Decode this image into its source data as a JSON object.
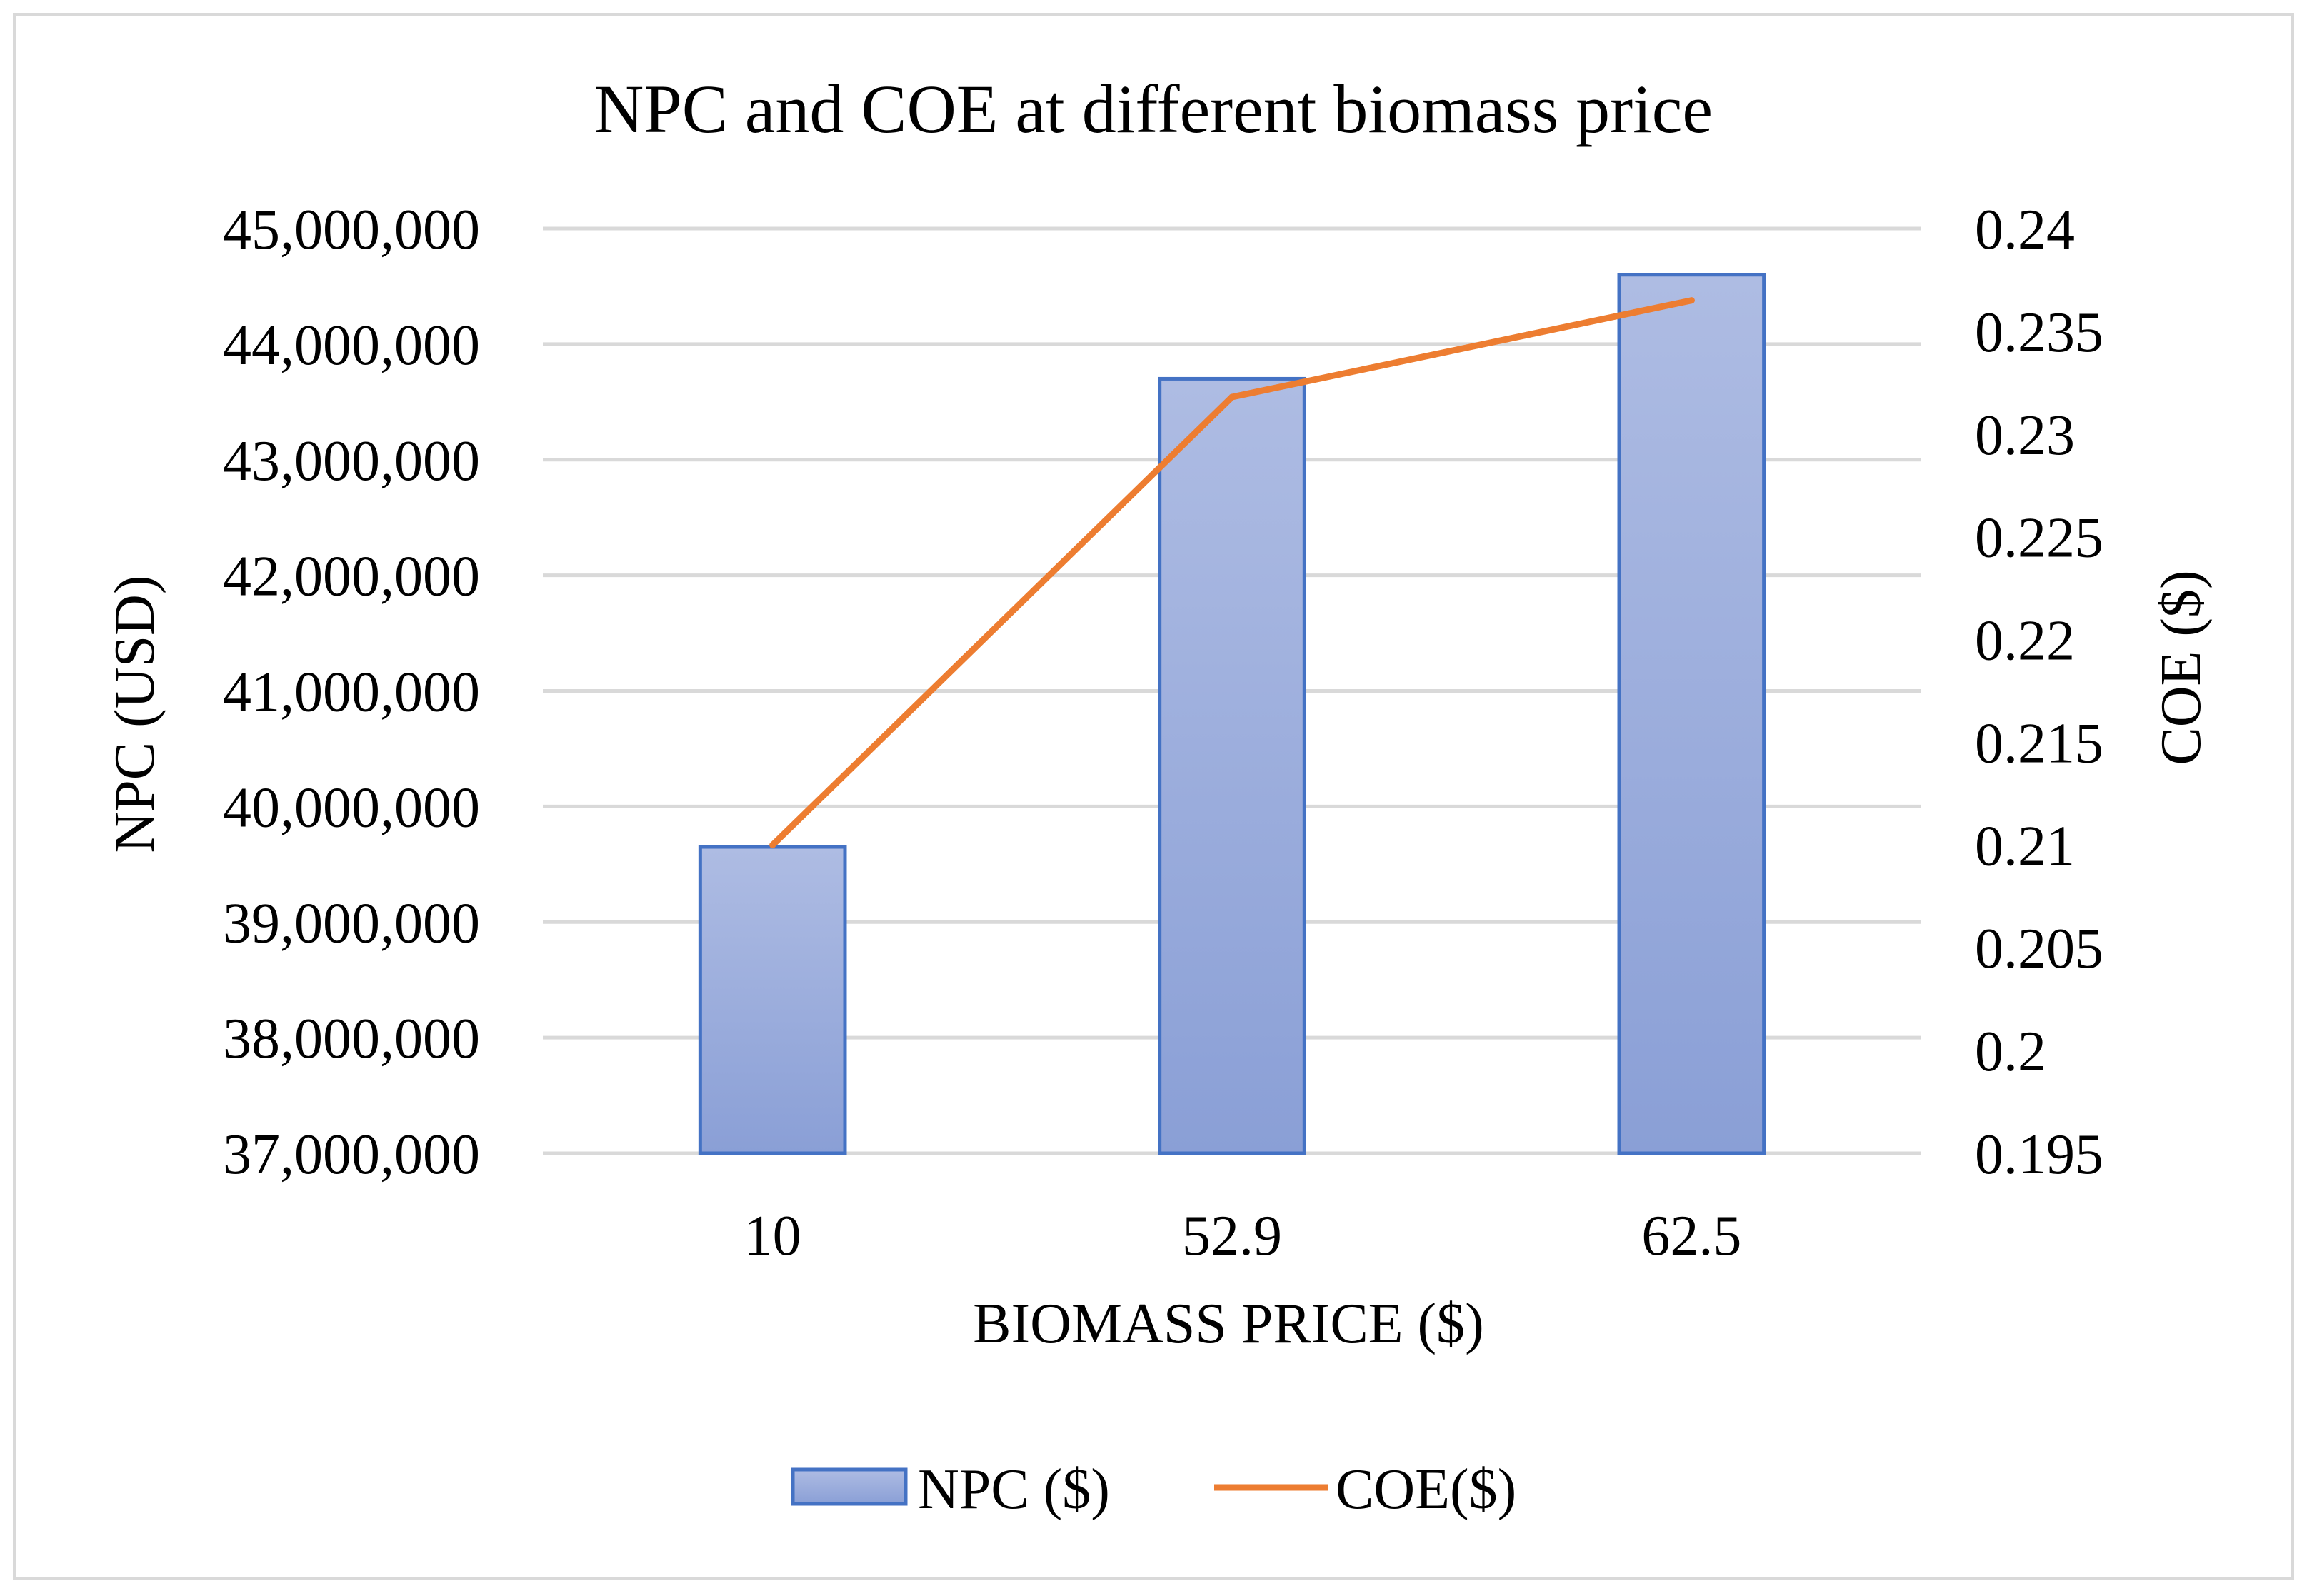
{
  "chart_data": {
    "type": "bar",
    "title": "NPC and COE at different biomass price",
    "xlabel": "BIOMASS PRICE ($)",
    "ylabel": "NPC (USD)",
    "y2label": "COE ($)",
    "categories": [
      "10",
      "52.9",
      "62.5"
    ],
    "ylim": [
      37000000,
      45000000
    ],
    "y2lim": [
      0.195,
      0.24
    ],
    "y_ticks": [
      {
        "value": 37000000,
        "label": "37,000,000"
      },
      {
        "value": 38000000,
        "label": "38,000,000"
      },
      {
        "value": 39000000,
        "label": "39,000,000"
      },
      {
        "value": 40000000,
        "label": "40,000,000"
      },
      {
        "value": 41000000,
        "label": "41,000,000"
      },
      {
        "value": 42000000,
        "label": "42,000,000"
      },
      {
        "value": 43000000,
        "label": "43,000,000"
      },
      {
        "value": 44000000,
        "label": "44,000,000"
      },
      {
        "value": 45000000,
        "label": "45,000,000"
      }
    ],
    "y2_ticks": [
      {
        "value": 0.195,
        "label": "0.195"
      },
      {
        "value": 0.2,
        "label": "0.2"
      },
      {
        "value": 0.205,
        "label": "0.205"
      },
      {
        "value": 0.21,
        "label": "0.21"
      },
      {
        "value": 0.215,
        "label": "0.215"
      },
      {
        "value": 0.22,
        "label": "0.22"
      },
      {
        "value": 0.225,
        "label": "0.225"
      },
      {
        "value": 0.23,
        "label": "0.23"
      },
      {
        "value": 0.235,
        "label": "0.235"
      },
      {
        "value": 0.24,
        "label": "0.24"
      }
    ],
    "series": [
      {
        "name": "NPC ($)",
        "type": "bar",
        "axis": "left",
        "values": [
          39650000,
          43700000,
          44600000
        ]
      },
      {
        "name": "COE($)",
        "type": "line",
        "axis": "right",
        "values": [
          0.21,
          0.2318,
          0.2365
        ]
      }
    ],
    "grid": true,
    "legend_position": "bottom"
  },
  "colors": {
    "bar_fill_top": "#aebce3",
    "bar_fill_bottom": "#8a9fd6",
    "bar_stroke": "#4472c4",
    "line": "#ed7d31",
    "grid": "#d9d9d9",
    "border": "#d9d9d9"
  }
}
